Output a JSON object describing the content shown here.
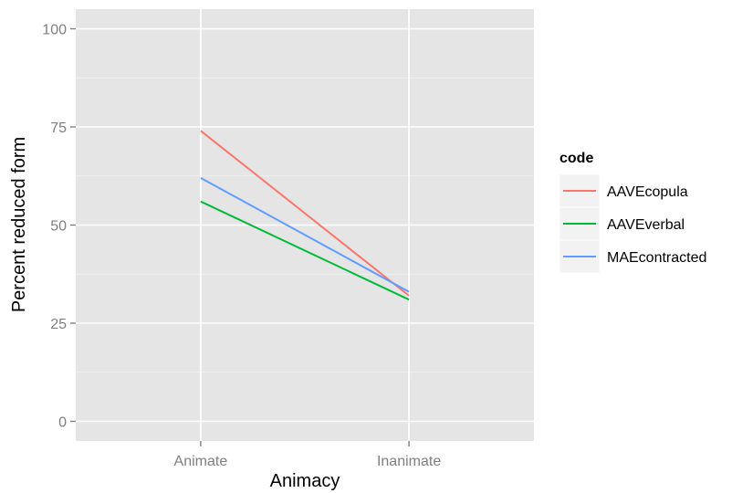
{
  "chart_data": {
    "type": "line",
    "title": "",
    "xlabel": "Animacy",
    "ylabel": "Percent reduced form",
    "categories": [
      "Animate",
      "Inanimate"
    ],
    "ylim": [
      -5,
      105
    ],
    "yticks": [
      0,
      25,
      50,
      75,
      100
    ],
    "grid": true,
    "legend_title": "code",
    "legend_position": "right",
    "series": [
      {
        "name": "AAVEcopula",
        "color": "#F8766D",
        "values": [
          74,
          32
        ]
      },
      {
        "name": "AAVEverbal",
        "color": "#00BA38",
        "values": [
          56,
          31
        ]
      },
      {
        "name": "MAEcontracted",
        "color": "#619CFF",
        "values": [
          62,
          33
        ]
      }
    ],
    "panel_background": "#E5E5E5",
    "grid_color": "#FFFFFF"
  }
}
